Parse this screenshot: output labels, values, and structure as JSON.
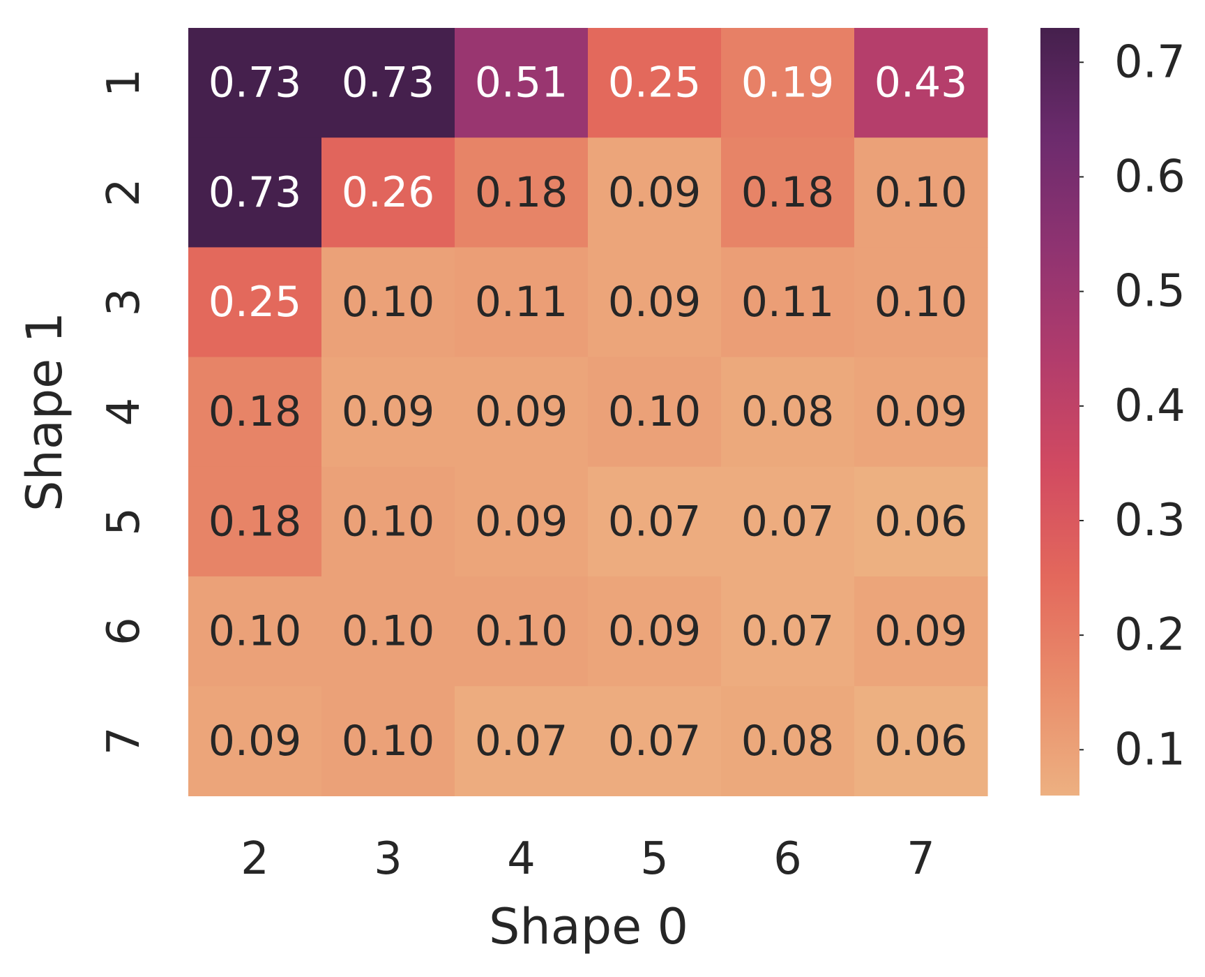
{
  "chart_data": {
    "type": "heatmap",
    "xlabel": "Shape 0",
    "ylabel": "Shape 1",
    "x_categories": [
      "2",
      "3",
      "4",
      "5",
      "6",
      "7"
    ],
    "y_categories": [
      "1",
      "2",
      "3",
      "4",
      "5",
      "6",
      "7"
    ],
    "values": [
      [
        0.73,
        0.73,
        0.51,
        0.25,
        0.19,
        0.43
      ],
      [
        0.73,
        0.26,
        0.18,
        0.09,
        0.18,
        0.1
      ],
      [
        0.25,
        0.1,
        0.11,
        0.09,
        0.11,
        0.1
      ],
      [
        0.18,
        0.09,
        0.09,
        0.1,
        0.08,
        0.09
      ],
      [
        0.18,
        0.1,
        0.09,
        0.07,
        0.07,
        0.06
      ],
      [
        0.1,
        0.1,
        0.1,
        0.09,
        0.07,
        0.09
      ],
      [
        0.09,
        0.1,
        0.07,
        0.07,
        0.08,
        0.06
      ]
    ],
    "value_format": "0.00",
    "colorbar": {
      "min": 0.06,
      "max": 0.73,
      "ticks": [
        0.1,
        0.2,
        0.3,
        0.4,
        0.5,
        0.6,
        0.7
      ],
      "tick_labels": [
        "0.1",
        "0.2",
        "0.3",
        "0.4",
        "0.5",
        "0.6",
        "0.7"
      ]
    },
    "colormap": "flare",
    "colormap_stops": [
      "#edb081",
      "#e98d6b",
      "#e3685c",
      "#d14a61",
      "#b13c6c",
      "#8f3371",
      "#6c2b6d",
      "#45204d"
    ],
    "annotation_colors": {
      "light": "#ffffff",
      "dark": "#262626"
    },
    "grid": false
  }
}
